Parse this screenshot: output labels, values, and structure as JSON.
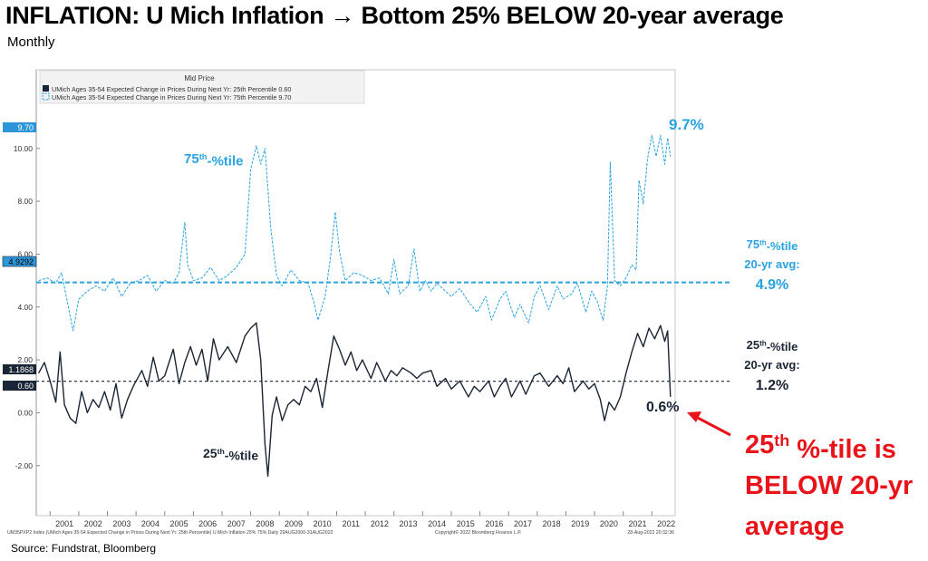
{
  "page": {
    "title": "INFLATION: U Mich Inflation → Bottom 25% BELOW 20-year average",
    "subtitle": "Monthly",
    "source": "Source: Fundstrat, Bloomberg"
  },
  "chart_data": {
    "type": "line",
    "legend_header": "Mid Price",
    "footer_left": "UM35PXP2 Index (UMich Ages 35-54 Expected Change in Prices During Next Yr: 25th Percentile) U Mich Inflation 25% 75%  Daily 29AUG2000-31AUG2022",
    "footer_center": "Copyright© 2022 Bloomberg Finance L.P.",
    "footer_right": "28-Aug-2022 20:32:36",
    "ylim": [
      -3.2,
      11.8
    ],
    "yticks": [
      "10.00",
      "8.00",
      "6.00",
      "4.00",
      "2.00",
      "0.00",
      "-2.00"
    ],
    "ytick_values": [
      10,
      8,
      6,
      4,
      2,
      0,
      -2
    ],
    "x_start": 2000.58,
    "x_end": 2022.75,
    "xticks": [
      "2001",
      "2002",
      "2003",
      "2004",
      "2005",
      "2006",
      "2007",
      "2008",
      "2009",
      "2010",
      "2011",
      "2012",
      "2013",
      "2014",
      "2015",
      "2016",
      "2017",
      "2018",
      "2019",
      "2020",
      "2021",
      "2022"
    ],
    "series": [
      {
        "name": "UMich Ages 35-54 Expected Change in Prices During Next Yr: 75th Percentile 9.70",
        "color": "#29a3e0",
        "style": "dashed",
        "last_value_label": "9.70",
        "avg_label": "4.9292",
        "avg": 4.93,
        "points": [
          [
            2000.6,
            5.0
          ],
          [
            2000.9,
            5.1
          ],
          [
            2001.2,
            4.9
          ],
          [
            2001.4,
            5.3
          ],
          [
            2001.6,
            4.2
          ],
          [
            2001.8,
            3.1
          ],
          [
            2002.0,
            4.3
          ],
          [
            2002.3,
            4.6
          ],
          [
            2002.6,
            4.8
          ],
          [
            2002.9,
            4.6
          ],
          [
            2003.2,
            5.1
          ],
          [
            2003.5,
            4.4
          ],
          [
            2003.8,
            4.9
          ],
          [
            2004.1,
            5.0
          ],
          [
            2004.4,
            5.2
          ],
          [
            2004.7,
            4.6
          ],
          [
            2005.0,
            5.0
          ],
          [
            2005.3,
            4.9
          ],
          [
            2005.5,
            5.3
          ],
          [
            2005.7,
            7.2
          ],
          [
            2005.8,
            5.6
          ],
          [
            2006.0,
            5.0
          ],
          [
            2006.3,
            5.1
          ],
          [
            2006.6,
            5.5
          ],
          [
            2006.9,
            5.0
          ],
          [
            2007.2,
            5.2
          ],
          [
            2007.5,
            5.5
          ],
          [
            2007.8,
            6.0
          ],
          [
            2008.0,
            9.2
          ],
          [
            2008.2,
            10.1
          ],
          [
            2008.35,
            9.4
          ],
          [
            2008.5,
            10.0
          ],
          [
            2008.7,
            7.0
          ],
          [
            2008.9,
            5.2
          ],
          [
            2009.1,
            4.8
          ],
          [
            2009.4,
            5.4
          ],
          [
            2009.7,
            5.0
          ],
          [
            2010.0,
            4.9
          ],
          [
            2010.2,
            4.2
          ],
          [
            2010.35,
            3.5
          ],
          [
            2010.6,
            4.4
          ],
          [
            2010.8,
            6.0
          ],
          [
            2010.95,
            7.6
          ],
          [
            2011.1,
            6.1
          ],
          [
            2011.3,
            5.0
          ],
          [
            2011.6,
            5.3
          ],
          [
            2011.9,
            5.2
          ],
          [
            2012.2,
            5.0
          ],
          [
            2012.5,
            5.1
          ],
          [
            2012.8,
            4.5
          ],
          [
            2013.0,
            5.8
          ],
          [
            2013.2,
            4.5
          ],
          [
            2013.5,
            4.8
          ],
          [
            2013.7,
            6.2
          ],
          [
            2013.9,
            4.6
          ],
          [
            2014.1,
            5.0
          ],
          [
            2014.3,
            4.6
          ],
          [
            2014.5,
            4.9
          ],
          [
            2014.8,
            4.6
          ],
          [
            2015.0,
            4.4
          ],
          [
            2015.3,
            4.7
          ],
          [
            2015.6,
            4.2
          ],
          [
            2015.9,
            3.8
          ],
          [
            2016.2,
            4.4
          ],
          [
            2016.4,
            3.5
          ],
          [
            2016.7,
            4.3
          ],
          [
            2016.9,
            4.6
          ],
          [
            2017.2,
            3.6
          ],
          [
            2017.4,
            4.1
          ],
          [
            2017.7,
            3.4
          ],
          [
            2017.9,
            4.4
          ],
          [
            2018.1,
            4.8
          ],
          [
            2018.4,
            3.9
          ],
          [
            2018.7,
            4.8
          ],
          [
            2018.9,
            4.3
          ],
          [
            2019.2,
            4.5
          ],
          [
            2019.4,
            4.9
          ],
          [
            2019.7,
            3.8
          ],
          [
            2019.9,
            4.6
          ],
          [
            2020.1,
            4.2
          ],
          [
            2020.3,
            3.5
          ],
          [
            2020.45,
            4.8
          ],
          [
            2020.55,
            9.5
          ],
          [
            2020.7,
            5.0
          ],
          [
            2020.9,
            4.8
          ],
          [
            2021.1,
            5.1
          ],
          [
            2021.3,
            5.6
          ],
          [
            2021.45,
            5.4
          ],
          [
            2021.55,
            8.8
          ],
          [
            2021.7,
            7.9
          ],
          [
            2021.85,
            9.6
          ],
          [
            2022.0,
            10.5
          ],
          [
            2022.15,
            9.7
          ],
          [
            2022.3,
            10.5
          ],
          [
            2022.45,
            9.4
          ],
          [
            2022.55,
            10.4
          ],
          [
            2022.65,
            9.7
          ]
        ]
      },
      {
        "name": "UMich Ages 35-54 Expected Change in Prices During Next Yr: 25th Percentile 0.60",
        "color": "#1a2535",
        "style": "solid",
        "last_value_label": "0.60",
        "avg_label": "1.1868",
        "avg": 1.19,
        "points": [
          [
            2000.6,
            1.5
          ],
          [
            2000.8,
            1.9
          ],
          [
            2001.0,
            1.2
          ],
          [
            2001.2,
            0.4
          ],
          [
            2001.35,
            2.3
          ],
          [
            2001.5,
            0.3
          ],
          [
            2001.7,
            -0.2
          ],
          [
            2001.9,
            -0.4
          ],
          [
            2002.1,
            0.8
          ],
          [
            2002.3,
            0.0
          ],
          [
            2002.5,
            0.5
          ],
          [
            2002.7,
            0.2
          ],
          [
            2002.9,
            0.8
          ],
          [
            2003.1,
            0.1
          ],
          [
            2003.3,
            1.1
          ],
          [
            2003.5,
            -0.2
          ],
          [
            2003.7,
            0.5
          ],
          [
            2003.9,
            1.0
          ],
          [
            2004.2,
            1.6
          ],
          [
            2004.4,
            1.0
          ],
          [
            2004.6,
            2.1
          ],
          [
            2004.8,
            1.2
          ],
          [
            2005.0,
            1.4
          ],
          [
            2005.3,
            2.4
          ],
          [
            2005.5,
            1.1
          ],
          [
            2005.7,
            1.9
          ],
          [
            2005.9,
            2.5
          ],
          [
            2006.1,
            1.8
          ],
          [
            2006.3,
            2.4
          ],
          [
            2006.5,
            1.2
          ],
          [
            2006.7,
            2.8
          ],
          [
            2006.9,
            2.0
          ],
          [
            2007.2,
            2.5
          ],
          [
            2007.5,
            1.9
          ],
          [
            2007.8,
            2.9
          ],
          [
            2008.0,
            3.2
          ],
          [
            2008.2,
            3.4
          ],
          [
            2008.35,
            2.0
          ],
          [
            2008.5,
            -1.2
          ],
          [
            2008.6,
            -2.4
          ],
          [
            2008.75,
            -0.1
          ],
          [
            2008.9,
            0.6
          ],
          [
            2009.1,
            -0.3
          ],
          [
            2009.3,
            0.3
          ],
          [
            2009.5,
            0.5
          ],
          [
            2009.7,
            0.3
          ],
          [
            2009.9,
            1.0
          ],
          [
            2010.1,
            0.8
          ],
          [
            2010.3,
            1.3
          ],
          [
            2010.5,
            0.2
          ],
          [
            2010.7,
            1.6
          ],
          [
            2010.9,
            2.9
          ],
          [
            2011.1,
            2.4
          ],
          [
            2011.3,
            1.8
          ],
          [
            2011.5,
            2.3
          ],
          [
            2011.7,
            1.6
          ],
          [
            2011.9,
            2.0
          ],
          [
            2012.2,
            1.3
          ],
          [
            2012.4,
            1.9
          ],
          [
            2012.7,
            1.2
          ],
          [
            2012.9,
            1.6
          ],
          [
            2013.1,
            1.4
          ],
          [
            2013.3,
            1.7
          ],
          [
            2013.6,
            1.5
          ],
          [
            2013.8,
            1.3
          ],
          [
            2014.0,
            1.5
          ],
          [
            2014.3,
            1.6
          ],
          [
            2014.5,
            1.0
          ],
          [
            2014.8,
            1.3
          ],
          [
            2015.0,
            0.9
          ],
          [
            2015.3,
            1.2
          ],
          [
            2015.6,
            0.6
          ],
          [
            2015.8,
            1.0
          ],
          [
            2016.0,
            0.8
          ],
          [
            2016.3,
            1.2
          ],
          [
            2016.5,
            0.6
          ],
          [
            2016.7,
            1.0
          ],
          [
            2016.9,
            1.3
          ],
          [
            2017.1,
            0.6
          ],
          [
            2017.4,
            1.2
          ],
          [
            2017.6,
            0.7
          ],
          [
            2017.9,
            1.4
          ],
          [
            2018.1,
            1.5
          ],
          [
            2018.4,
            1.0
          ],
          [
            2018.7,
            1.4
          ],
          [
            2018.9,
            1.1
          ],
          [
            2019.1,
            1.7
          ],
          [
            2019.3,
            0.8
          ],
          [
            2019.6,
            1.2
          ],
          [
            2019.8,
            0.9
          ],
          [
            2020.0,
            1.1
          ],
          [
            2020.2,
            0.5
          ],
          [
            2020.35,
            -0.3
          ],
          [
            2020.5,
            0.4
          ],
          [
            2020.7,
            0.1
          ],
          [
            2020.9,
            0.6
          ],
          [
            2021.1,
            1.5
          ],
          [
            2021.3,
            2.3
          ],
          [
            2021.5,
            3.0
          ],
          [
            2021.7,
            2.5
          ],
          [
            2021.9,
            3.2
          ],
          [
            2022.1,
            2.8
          ],
          [
            2022.3,
            3.3
          ],
          [
            2022.45,
            2.7
          ],
          [
            2022.55,
            3.1
          ],
          [
            2022.65,
            0.6
          ]
        ]
      }
    ],
    "annotations": {
      "label_75": "75th-%tile",
      "label_25": "25th-%tile",
      "last_75": "9.7%",
      "last_25": "0.6%",
      "avg75_line1": "75th-%tile",
      "avg75_line2": "20-yr avg:",
      "avg75_value": "4.9%",
      "avg25_line1": "25th-%tile",
      "avg25_line2": "20-yr avg:",
      "avg25_value": "1.2%",
      "callout_line1": "25th %-tile is",
      "callout_line2": "BELOW 20-yr",
      "callout_line3": "average",
      "callout_color": "#e8141a"
    }
  }
}
